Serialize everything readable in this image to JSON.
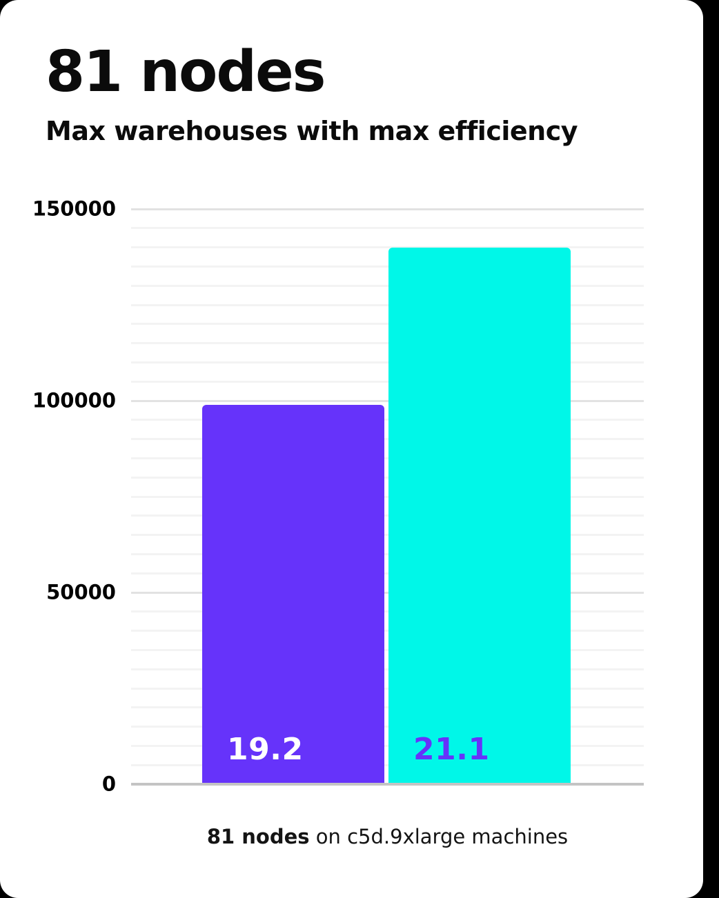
{
  "page": {
    "background_color": "#000000",
    "card_color": "#ffffff"
  },
  "header": {
    "title": "81 nodes",
    "subtitle": "Max warehouses with max efficiency"
  },
  "chart_data": {
    "type": "bar",
    "title": "81 nodes",
    "subtitle": "Max warehouses with max efficiency",
    "categories": [
      "19.2",
      "21.1"
    ],
    "values": [
      99000,
      140000
    ],
    "bar_colors": [
      "#6633fa",
      "#00f7e8"
    ],
    "bar_label_colors": [
      "#ffffff",
      "#6633fa"
    ],
    "bar_value_labels": [
      "19.2",
      "21.1"
    ],
    "xlabel": "",
    "ylabel": "",
    "ylim": [
      0,
      150000
    ],
    "yticks": [
      0,
      50000,
      100000,
      150000
    ],
    "ytick_labels": [
      "0",
      "50000",
      "100000",
      "150000"
    ],
    "minor_grid_step": 5000,
    "major_grid_step": 50000,
    "grid": "horizontal",
    "legend": false,
    "grid_colors": {
      "minor": "#f3f3f3",
      "major": "#e2e2e2",
      "baseline": "#c4c4c4"
    }
  },
  "caption": {
    "bold": "81 nodes",
    "rest": " on c5d.9xlarge machines"
  }
}
